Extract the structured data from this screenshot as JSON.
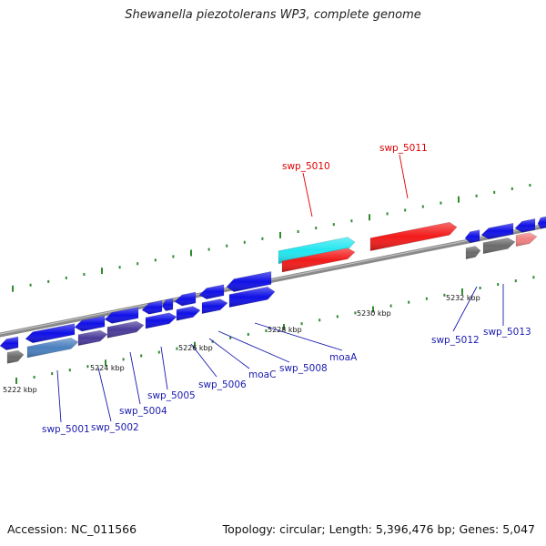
{
  "title": "Shewanella piezotolerans WP3, complete genome",
  "footer": {
    "accession": "Accession: NC_011566",
    "summary": "Topology: circular; Length: 5,396,476 bp; Genes: 5,047"
  },
  "colors": {
    "backbone": "#8a8a8a",
    "gene_blue": "#1010e6",
    "label_blue": "#1a1ab0",
    "label_red": "#e00000",
    "gene_red": "#f21a1a",
    "gene_cyan": "#22e6f0",
    "gene_pink": "#f08080",
    "gene_gray": "#6a6a6a",
    "gene_steel": "#4a7fbf",
    "gene_purple": "#4a3a9a",
    "tick_green": "#2e8b2e"
  },
  "ticks": [
    "5222 kbp",
    "5224 kbp",
    "5226 kbp",
    "5228 kbp",
    "5230 kbp",
    "5232 kbp"
  ],
  "labels": {
    "swp_5001": "swp_5001",
    "swp_5002": "swp_5002",
    "swp_5004": "swp_5004",
    "swp_5005": "swp_5005",
    "swp_5006": "swp_5006",
    "moaC": "moaC",
    "swp_5008": "swp_5008",
    "moaA": "moaA",
    "swp_5010": "swp_5010",
    "swp_5011": "swp_5011",
    "swp_5012": "swp_5012",
    "swp_5013": "swp_5013"
  }
}
